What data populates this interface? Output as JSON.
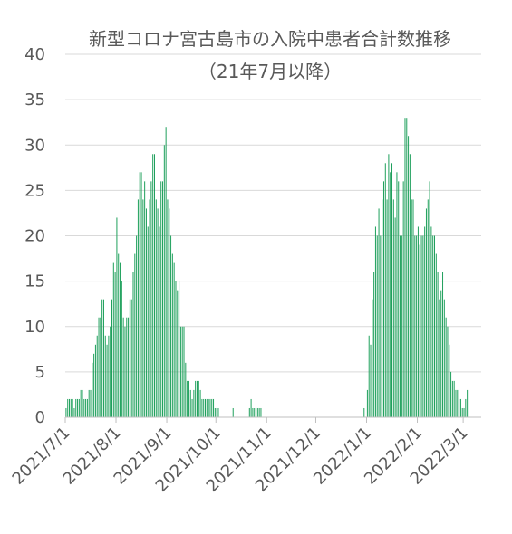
{
  "chart_data": {
    "type": "bar",
    "title": "新型コロナ宮古島市の入院中患者合計数推移",
    "subtitle": "（21年7月以降）",
    "xlabel": "",
    "ylabel": "",
    "ylim": [
      0,
      40
    ],
    "yticks": [
      "0",
      "5",
      "10",
      "15",
      "20",
      "25",
      "30",
      "35",
      "40"
    ],
    "xticks": [
      {
        "date": "2021-07-01",
        "label": "2021/7/1"
      },
      {
        "date": "2021-08-01",
        "label": "2021/8/1"
      },
      {
        "date": "2021-09-01",
        "label": "2021/9/1"
      },
      {
        "date": "2021-10-01",
        "label": "2021/10/1"
      },
      {
        "date": "2021-11-01",
        "label": "2021/11/1"
      },
      {
        "date": "2021-12-01",
        "label": "2021/12/1"
      },
      {
        "date": "2022-01-01",
        "label": "2022/1/1"
      },
      {
        "date": "2022-02-01",
        "label": "2022/2/1"
      },
      {
        "date": "2022-03-01",
        "label": "2022/3/1"
      }
    ],
    "x_start": "2021-07-01",
    "x_end": "2022-03-11",
    "grid": true,
    "bar_color": "#1fa05c",
    "series": [
      {
        "segments": [
          {
            "start": "2021-07-01",
            "values": [
              1,
              2,
              2,
              2,
              2,
              1,
              2,
              2,
              2,
              3,
              3,
              2,
              2,
              2,
              3,
              3,
              6,
              7,
              8,
              9,
              11,
              11,
              13,
              13,
              9,
              8,
              9,
              10,
              13,
              17,
              16,
              22,
              18,
              17,
              15,
              11,
              10,
              11,
              11,
              13,
              13,
              16,
              18,
              20,
              24,
              27,
              27,
              24,
              26,
              23,
              21,
              24,
              26,
              29,
              29,
              24,
              23,
              21,
              26,
              26,
              30,
              32,
              24,
              23,
              20,
              18,
              17,
              15,
              14,
              15,
              10,
              10,
              10,
              6,
              4,
              4,
              3,
              2,
              3,
              4,
              4,
              4,
              3,
              2,
              2,
              2,
              2,
              2,
              2,
              2,
              2,
              1,
              1,
              1
            ]
          },
          {
            "start": "2021-10-11",
            "values": [
              1
            ]
          },
          {
            "start": "2021-10-21",
            "values": [
              1,
              2,
              1,
              1,
              1,
              1,
              1,
              1
            ]
          },
          {
            "start": "2021-12-30",
            "values": [
              1
            ]
          },
          {
            "start": "2022-01-01",
            "values": [
              3,
              9,
              8,
              13,
              16,
              21,
              20,
              23,
              20,
              24,
              26,
              28,
              24,
              29,
              27,
              28,
              24,
              22,
              27,
              26,
              20,
              20,
              26,
              33,
              33,
              31,
              29,
              24,
              24,
              20,
              20,
              21,
              19,
              20,
              20,
              21,
              23,
              24,
              26,
              21,
              20,
              20,
              18,
              16,
              13,
              14,
              16,
              13,
              11,
              10,
              8,
              5,
              4,
              4,
              3,
              3,
              2,
              2,
              1,
              1,
              2,
              3
            ]
          }
        ]
      }
    ]
  }
}
